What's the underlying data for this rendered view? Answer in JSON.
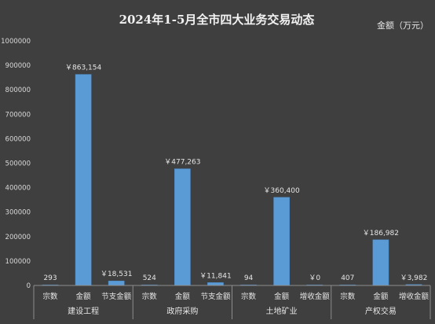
{
  "chart_data": {
    "type": "bar",
    "title": "2024年1-5月全市四大业务交易动态",
    "unit_label": "金额（万元）",
    "ylim": [
      0,
      1000000
    ],
    "yticks": [
      "0",
      "100000",
      "200000",
      "300000",
      "400000",
      "500000",
      "600000",
      "700000",
      "800000",
      "900000",
      "1000000"
    ],
    "grid": false,
    "groups": [
      {
        "name": "建设工程",
        "categories": [
          "宗数",
          "金额",
          "节支金额"
        ],
        "values": [
          293,
          863154,
          18531
        ],
        "labels": [
          "293",
          "￥863,154",
          "￥18,531"
        ]
      },
      {
        "name": "政府采购",
        "categories": [
          "宗数",
          "金额",
          "节支金额"
        ],
        "values": [
          524,
          477263,
          11841
        ],
        "labels": [
          "524",
          "￥477,263",
          "￥11,841"
        ]
      },
      {
        "name": "土地矿业",
        "categories": [
          "宗数",
          "金额",
          "增收金额"
        ],
        "values": [
          94,
          360400,
          0
        ],
        "labels": [
          "94",
          "￥360,400",
          "￥0"
        ]
      },
      {
        "name": "产权交易",
        "categories": [
          "宗数",
          "金额",
          "增收金额"
        ],
        "values": [
          407,
          186982,
          3982
        ],
        "labels": [
          "407",
          "￥186,982",
          "￥3,982"
        ]
      }
    ],
    "colors": {
      "bar": "#5b9bd5",
      "bar_edge": "#4a86c0",
      "background": "#3f3f3f",
      "axis": "#8c8c8c"
    }
  }
}
